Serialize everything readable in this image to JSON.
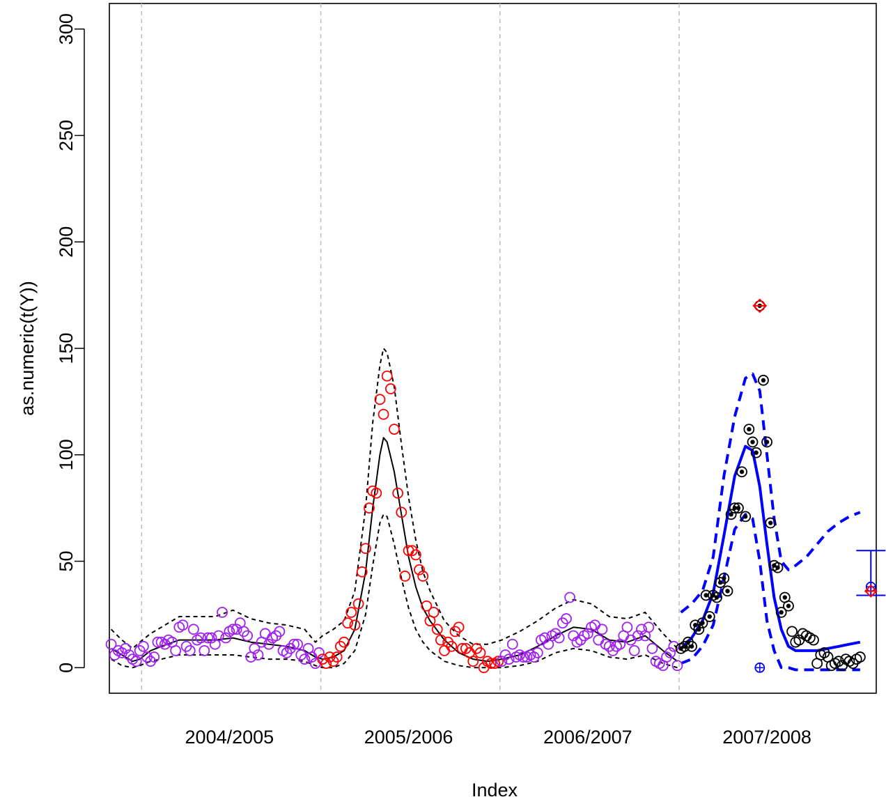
{
  "chart_data": {
    "type": "scatter",
    "title": "",
    "xlabel": "Index",
    "ylabel": "as.numeric(t(Y))",
    "ylim": [
      -12,
      312
    ],
    "xlim": [
      0.5,
      214.5
    ],
    "y_ticks": [
      0,
      50,
      100,
      150,
      200,
      250,
      300
    ],
    "season_labels": [
      {
        "label": "2004/2005",
        "x": 34
      },
      {
        "label": "2005/2006",
        "x": 84
      },
      {
        "label": "2006/2007",
        "x": 134
      },
      {
        "label": "2007/2008",
        "x": 184
      }
    ],
    "season_dividers": [
      9.5,
      59.5,
      109.5,
      159.5
    ],
    "grid": "vertical dashed season dividers",
    "colors": {
      "seasonal_points": "#a020f0",
      "epidemic_points": "#ff0000",
      "current_points": "#000000",
      "historic_fit": "#000000",
      "forecast": "#0000ff",
      "alarm_marker": "#ff0000",
      "divider": "#bebebe"
    },
    "series": [
      {
        "name": "",
        "kind": "points",
        "color": "#a020f0",
        "x": [
          1,
          2,
          3,
          4,
          5,
          6,
          7,
          8,
          9,
          10,
          11,
          12,
          13,
          14,
          15,
          16,
          17,
          18,
          19,
          20,
          21,
          22,
          23,
          24,
          25,
          26,
          27,
          28,
          29,
          30,
          31,
          32,
          33,
          34,
          35,
          36,
          37,
          38,
          39,
          40,
          41,
          42,
          43,
          44,
          45,
          46,
          47,
          48,
          49,
          50,
          51,
          52,
          53,
          54,
          55,
          56,
          57,
          58,
          59
        ],
        "values": [
          11,
          6,
          8,
          7,
          9,
          6,
          4,
          3,
          8,
          10,
          5,
          3,
          5,
          12,
          12,
          11,
          13,
          12,
          8,
          19,
          20,
          10,
          8,
          18,
          13,
          14,
          8,
          14,
          14,
          11,
          15,
          26,
          14,
          17,
          18,
          18,
          21,
          17,
          15,
          5,
          9,
          6,
          12,
          16,
          11,
          14,
          15,
          17,
          8,
          7,
          9,
          11,
          11,
          6,
          4,
          9,
          5,
          2,
          7
        ],
        "note": "2003/04 tail and 2004/05 season"
      },
      {
        "name": "",
        "kind": "points",
        "color": "#ff0000",
        "x": [
          60,
          61,
          62,
          63,
          64,
          65,
          66,
          67,
          68,
          69,
          70,
          71,
          72,
          73,
          74,
          75,
          76,
          77,
          78,
          79,
          80,
          81,
          82,
          83,
          84,
          85,
          86,
          87,
          88,
          89,
          90,
          91,
          92,
          93,
          94,
          95,
          96,
          97,
          98,
          99,
          100,
          101,
          102,
          103,
          104,
          105,
          106,
          107,
          108,
          109
        ],
        "values": [
          4,
          2,
          5,
          3,
          5,
          10,
          12,
          21,
          26,
          20,
          30,
          45,
          56,
          75,
          83,
          82,
          126,
          119,
          137,
          131,
          112,
          82,
          73,
          43,
          55,
          55,
          53,
          46,
          43,
          29,
          22,
          26,
          18,
          13,
          8,
          12,
          10,
          17,
          19,
          9,
          9,
          7,
          3,
          9,
          7,
          0,
          3,
          2,
          2,
          3
        ],
        "note": "2005/06 season"
      },
      {
        "name": "",
        "kind": "points",
        "color": "#a020f0",
        "x": [
          110,
          111,
          112,
          113,
          114,
          115,
          116,
          117,
          118,
          119,
          120,
          121,
          122,
          123,
          124,
          125,
          126,
          127,
          128,
          129,
          130,
          131,
          132,
          133,
          134,
          135,
          136,
          137,
          138,
          139,
          140,
          141,
          142,
          143,
          144,
          145,
          146,
          147,
          148,
          149,
          150,
          151,
          152,
          153,
          154,
          155,
          156,
          157,
          158,
          159
        ],
        "values": [
          3,
          6,
          4,
          11,
          5,
          6,
          5,
          5,
          6,
          5,
          7,
          13,
          14,
          11,
          15,
          16,
          14,
          21,
          23,
          33,
          15,
          12,
          13,
          15,
          16,
          19,
          20,
          13,
          18,
          11,
          10,
          8,
          10,
          11,
          15,
          19,
          13,
          8,
          15,
          18,
          15,
          19,
          9,
          3,
          2,
          1,
          5,
          7,
          10,
          1
        ],
        "note": "2006/07 season"
      },
      {
        "name": "",
        "kind": "points",
        "color": "#000000",
        "filled_center": true,
        "x": [
          160,
          161,
          162,
          163,
          164,
          165,
          166,
          167,
          168,
          169,
          170,
          171,
          172,
          173,
          174,
          175,
          176,
          177,
          178,
          179,
          180,
          181,
          182,
          183,
          184,
          185,
          186,
          187,
          188,
          189,
          190
        ],
        "values": [
          9,
          10,
          12,
          10,
          20,
          18,
          21,
          34,
          24,
          34,
          33,
          40,
          42,
          36,
          72,
          75,
          75,
          92,
          71,
          112,
          106,
          101,
          170,
          135,
          106,
          68,
          48,
          47,
          26,
          33,
          29
        ],
        "note": "2007/08 season, observed with alarm check"
      },
      {
        "name": "",
        "kind": "points",
        "color": "#000000",
        "filled_center": false,
        "x": [
          191,
          192,
          193,
          194,
          195,
          196,
          197,
          198,
          199,
          200,
          201,
          202,
          203,
          204,
          205,
          206,
          207,
          208,
          209,
          210
        ],
        "values": [
          17,
          12,
          13,
          16,
          15,
          14,
          13,
          2,
          6,
          7,
          5,
          1,
          2,
          3,
          1,
          4,
          3,
          2,
          4,
          5
        ],
        "note": "2007/08 season tail"
      },
      {
        "name": "",
        "kind": "line",
        "style": "solid",
        "color": "#000000",
        "x": [
          1,
          4,
          7,
          9,
          12,
          15,
          20,
          25,
          30,
          35,
          40,
          45,
          50,
          55,
          58,
          60,
          63,
          66,
          69,
          72,
          74,
          76,
          77,
          78,
          80,
          82,
          84,
          86,
          88,
          90,
          94,
          98,
          102,
          106,
          110,
          115,
          120,
          125,
          130,
          135,
          140,
          145,
          150,
          155,
          159
        ],
        "values": [
          9,
          6,
          3,
          4,
          8,
          10,
          13,
          13,
          13,
          14,
          12,
          11,
          10,
          8,
          5,
          4,
          5,
          8,
          18,
          45,
          75,
          100,
          108,
          106,
          92,
          72,
          52,
          38,
          28,
          22,
          13,
          7,
          4,
          3,
          4,
          6,
          10,
          15,
          19,
          18,
          13,
          12,
          15,
          8,
          3
        ],
        "note": "historic fitted mean"
      },
      {
        "name": "",
        "kind": "line",
        "style": "dashed",
        "color": "#000000",
        "x": [
          1,
          4,
          7,
          9,
          12,
          15,
          20,
          25,
          30,
          35,
          40,
          45,
          50,
          55,
          58,
          60,
          63,
          66,
          69,
          72,
          74,
          76,
          77,
          78,
          80,
          82,
          84,
          86,
          88,
          90,
          94,
          98,
          102,
          106,
          110,
          115,
          120,
          125,
          130,
          135,
          140,
          145,
          150,
          155,
          159
        ],
        "values": [
          18,
          13,
          9,
          12,
          16,
          19,
          24,
          24,
          24,
          27,
          23,
          21,
          20,
          18,
          12,
          15,
          18,
          22,
          36,
          75,
          115,
          142,
          150,
          148,
          132,
          105,
          80,
          60,
          45,
          36,
          22,
          15,
          11,
          11,
          13,
          17,
          22,
          28,
          32,
          30,
          24,
          23,
          26,
          16,
          9
        ],
        "note": "historic upper band"
      },
      {
        "name": "",
        "kind": "line",
        "style": "dashed",
        "color": "#000000",
        "x": [
          1,
          4,
          7,
          9,
          12,
          15,
          20,
          25,
          30,
          35,
          40,
          45,
          50,
          55,
          58,
          60,
          63,
          66,
          69,
          72,
          74,
          76,
          77,
          78,
          80,
          82,
          84,
          86,
          88,
          90,
          94,
          98,
          102,
          106,
          110,
          115,
          120,
          125,
          130,
          135,
          140,
          145,
          150,
          155,
          159
        ],
        "values": [
          4,
          1,
          0,
          1,
          3,
          4,
          6,
          6,
          6,
          6,
          5,
          4,
          4,
          3,
          1,
          0,
          0,
          2,
          8,
          25,
          48,
          68,
          72,
          71,
          58,
          42,
          28,
          18,
          12,
          8,
          3,
          1,
          0,
          0,
          0,
          1,
          3,
          7,
          9,
          8,
          5,
          4,
          6,
          2,
          0
        ],
        "note": "historic lower band"
      },
      {
        "name": "",
        "kind": "line",
        "style": "solid",
        "thick": true,
        "color": "#0000ff",
        "x": [
          160,
          163,
          166,
          169,
          172,
          175,
          178,
          180,
          182,
          184,
          186,
          188,
          190,
          192,
          195,
          198,
          201,
          204,
          207,
          210
        ],
        "values": [
          9,
          14,
          22,
          35,
          62,
          90,
          104,
          102,
          85,
          58,
          33,
          18,
          10,
          8,
          8,
          8,
          9,
          10,
          11,
          12
        ],
        "note": "current season prediction"
      },
      {
        "name": "",
        "kind": "line",
        "style": "dashed",
        "thick": true,
        "color": "#0000ff",
        "x": [
          160,
          163,
          166,
          169,
          172,
          175,
          178,
          180,
          182,
          184,
          186,
          188,
          190,
          192,
          195,
          198,
          201,
          204,
          207,
          210
        ],
        "values": [
          26,
          30,
          36,
          52,
          90,
          118,
          136,
          138,
          130,
          100,
          70,
          50,
          46,
          48,
          52,
          58,
          64,
          68,
          71,
          73
        ],
        "note": "current season upper band"
      },
      {
        "name": "",
        "kind": "line",
        "style": "dashed",
        "thick": true,
        "color": "#0000ff",
        "x": [
          160,
          163,
          166,
          169,
          172,
          175,
          178,
          180,
          182,
          184,
          186,
          188,
          190,
          192,
          195,
          198,
          201,
          204,
          207,
          210
        ],
        "values": [
          2,
          4,
          10,
          20,
          42,
          65,
          72,
          70,
          50,
          22,
          8,
          0,
          0,
          -1,
          -1,
          -1,
          -1,
          -1,
          -1,
          -1
        ],
        "note": "current season lower band"
      }
    ],
    "alarms": [
      {
        "x": 182,
        "value": 170,
        "marker": "diamond",
        "color": "#ff0000"
      }
    ],
    "blue_marks": [
      {
        "x": 182,
        "value": 0,
        "marker": "circle-plus",
        "color": "#0000ff"
      }
    ],
    "forecast_interval": {
      "x": 213,
      "upper": 55,
      "lower": 34,
      "point": 38,
      "alarm_point": 36,
      "color": "#0000ff"
    }
  }
}
